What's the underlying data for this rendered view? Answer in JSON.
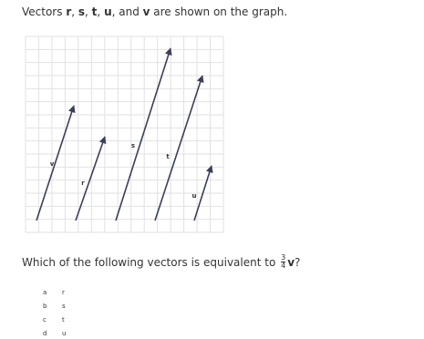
{
  "intro": [
    "Vectors ",
    "r",
    ", ",
    "s",
    ", ",
    "t",
    ", ",
    "u",
    ", and ",
    "v",
    " are shown on the graph."
  ],
  "graph": {
    "labels": [
      "v",
      "r",
      "s",
      "t",
      "u"
    ]
  },
  "question": {
    "text": "Which of the following vectors is equivalent to ",
    "numerator": "3",
    "denominator": "4",
    "vector": "v",
    "end": "?"
  },
  "options": [
    {
      "letter": "a",
      "text": "r"
    },
    {
      "letter": "b",
      "text": "s"
    },
    {
      "letter": "c",
      "text": "t"
    },
    {
      "letter": "d",
      "text": "u"
    }
  ]
}
